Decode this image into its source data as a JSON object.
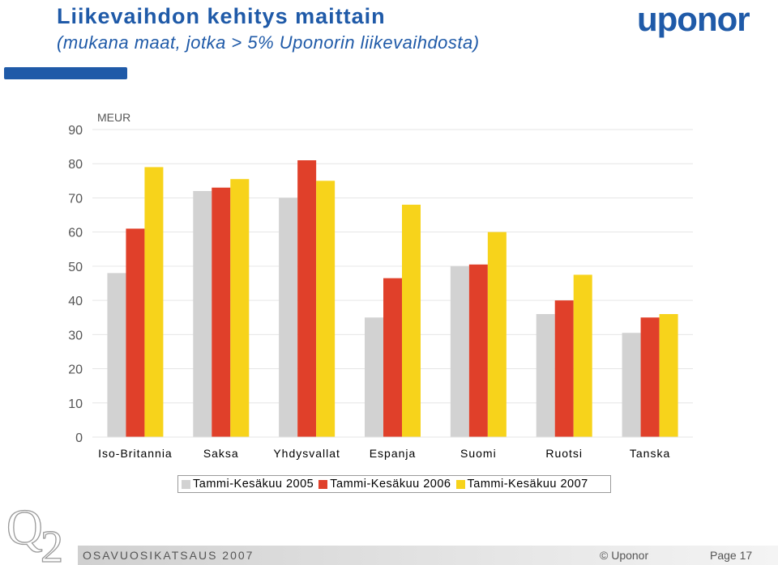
{
  "slide": {
    "title_line1": "Liikevaihdon kehitys maittain",
    "title_line2": "(mukana maat, jotka > 5% Uponorin liikevaihdosta)",
    "logo": "uponor",
    "footer_left": "OSAVUOSIKATSAUS 2007",
    "footer_mid": "© Uponor",
    "footer_right": "Page 17",
    "corner_mark": "Q2"
  },
  "colors": {
    "brand": "#1f5aa8",
    "series": [
      "#d2d2d2",
      "#e0402a",
      "#f7d31b"
    ]
  },
  "chart_data": {
    "type": "bar",
    "title": "Liikevaihdon kehitys maittain",
    "unit_label": "MEUR",
    "xlabel": "",
    "ylabel": "MEUR",
    "ylim": [
      0,
      90
    ],
    "yticks": [
      0,
      10,
      20,
      30,
      40,
      50,
      60,
      70,
      80,
      90
    ],
    "grid": true,
    "legend_position": "bottom",
    "categories": [
      "Iso-Britannia",
      "Saksa",
      "Yhdysvallat",
      "Espanja",
      "Suomi",
      "Ruotsi",
      "Tanska"
    ],
    "series": [
      {
        "name": "Tammi-Kesäkuu 2005",
        "values": [
          48,
          72,
          70,
          35,
          50,
          36,
          30.5
        ]
      },
      {
        "name": "Tammi-Kesäkuu 2006",
        "values": [
          61,
          73,
          81,
          46.5,
          50.5,
          40,
          35
        ]
      },
      {
        "name": "Tammi-Kesäkuu 2007",
        "values": [
          79,
          75.5,
          75,
          68,
          60,
          47.5,
          36
        ]
      }
    ]
  }
}
